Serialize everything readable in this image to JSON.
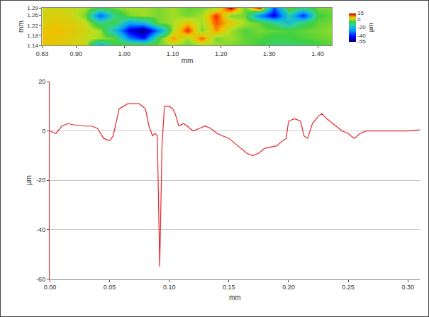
{
  "chart_data": [
    {
      "type": "heatmap",
      "xlabel": "mm",
      "ylabel": "mm",
      "x": [
        0.83,
        0.86,
        0.89,
        0.92,
        0.95,
        0.98,
        1.01,
        1.04,
        1.07,
        1.1,
        1.13,
        1.16,
        1.19,
        1.22,
        1.25,
        1.28,
        1.31,
        1.34,
        1.37,
        1.4,
        1.43
      ],
      "y": [
        1.14,
        1.17,
        1.2,
        1.23,
        1.26,
        1.29
      ],
      "z": [
        [
          5,
          5,
          4,
          3,
          -25,
          -5,
          0,
          0,
          -2,
          0,
          -3,
          0,
          0,
          -2,
          -3,
          -5,
          -8,
          -10,
          -8,
          -5,
          -3
        ],
        [
          6,
          5,
          4,
          2,
          0,
          -3,
          -30,
          -40,
          -5,
          8,
          0,
          10,
          -2,
          0,
          -3,
          -4,
          -6,
          -5,
          -4,
          -3,
          -2
        ],
        [
          5,
          6,
          5,
          3,
          0,
          -20,
          -45,
          -55,
          -30,
          0,
          12,
          -2,
          8,
          0,
          -4,
          -2,
          -3,
          -4,
          -3,
          -2,
          -1
        ],
        [
          4,
          5,
          4,
          2,
          -10,
          -5,
          -25,
          -20,
          -2,
          0,
          5,
          0,
          10,
          5,
          0,
          -3,
          -10,
          -20,
          -8,
          -3,
          -2
        ],
        [
          3,
          4,
          3,
          -2,
          -35,
          -10,
          -2,
          0,
          -2,
          0,
          -2,
          0,
          12,
          -2,
          -2,
          -30,
          -45,
          -15,
          -40,
          -5,
          -3
        ],
        [
          3,
          3,
          2,
          0,
          -5,
          -2,
          0,
          0,
          -2,
          0,
          -3,
          -2,
          0,
          15,
          -3,
          15,
          -35,
          -2,
          -10,
          -2,
          -2
        ]
      ],
      "xlim": [
        0.83,
        1.43
      ],
      "xticks": [
        0.83,
        {
          "value": 0.9,
          "label": "0.90"
        },
        {
          "value": 1.0,
          "label": "1.00"
        },
        {
          "value": 1.1,
          "label": "1.10"
        },
        {
          "value": 1.2,
          "label": "1.20"
        },
        {
          "value": 1.3,
          "label": "1.30"
        },
        {
          "value": 1.4,
          "label": "1.40"
        }
      ],
      "ylim": [
        1.14,
        1.29
      ],
      "yticks": [
        1.14,
        1.18,
        1.22,
        1.26,
        1.29
      ],
      "colorbar": {
        "title": "µm",
        "range": [
          -55,
          15
        ],
        "ticks": [
          15,
          0,
          -20,
          -40,
          -55
        ]
      }
    },
    {
      "type": "line",
      "xlabel": "mm",
      "ylabel": "µm",
      "color": "#e8262a",
      "grid": true,
      "x": [
        0,
        0.005,
        0.01,
        0.015,
        0.02,
        0.03,
        0.035,
        0.04,
        0.045,
        0.05,
        0.053,
        0.058,
        0.065,
        0.07,
        0.075,
        0.08,
        0.083,
        0.086,
        0.088,
        0.09,
        0.091,
        0.092,
        0.093,
        0.094,
        0.096,
        0.1,
        0.103,
        0.105,
        0.108,
        0.112,
        0.115,
        0.12,
        0.125,
        0.13,
        0.135,
        0.14,
        0.15,
        0.155,
        0.16,
        0.165,
        0.17,
        0.175,
        0.18,
        0.19,
        0.195,
        0.198,
        0.2,
        0.205,
        0.21,
        0.213,
        0.216,
        0.22,
        0.225,
        0.228,
        0.232,
        0.24,
        0.245,
        0.25,
        0.255,
        0.26,
        0.265,
        0.27,
        0.28,
        0.29,
        0.3,
        0.31
      ],
      "values": [
        0,
        -1,
        2,
        3,
        2.5,
        2,
        2,
        1,
        -3,
        -4,
        -2,
        9,
        11,
        11,
        11,
        9,
        2,
        -2,
        -1,
        -2,
        -30,
        -55,
        -30,
        -5,
        10,
        10,
        9,
        7,
        2,
        3,
        2,
        0,
        1,
        2,
        1,
        -1,
        -3,
        -5,
        -7,
        -9,
        -10,
        -9,
        -7,
        -6,
        -4,
        -3,
        4,
        5,
        4,
        -2,
        -3,
        3,
        6,
        7,
        5,
        2,
        0,
        -1,
        -3,
        -1,
        0,
        0,
        0,
        0,
        0,
        0.5
      ],
      "xlim": [
        0,
        0.31
      ],
      "xticks": [
        {
          "value": 0,
          "label": "0.00"
        },
        {
          "value": 0.05,
          "label": "0.05"
        },
        {
          "value": 0.1,
          "label": "0.10"
        },
        {
          "value": 0.15,
          "label": "0.15"
        },
        {
          "value": 0.2,
          "label": "0.20"
        },
        {
          "value": 0.25,
          "label": "0.25"
        },
        {
          "value": 0.3,
          "label": "0.30"
        }
      ],
      "ylim": [
        -60,
        20
      ],
      "yticks": [
        -60,
        -40,
        -20,
        0,
        20
      ]
    }
  ]
}
